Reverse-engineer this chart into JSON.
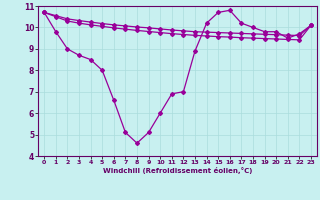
{
  "xlabel": "Windchill (Refroidissement éolien,°C)",
  "background_color": "#c8f0f0",
  "line_color": "#990099",
  "xlim": [
    -0.5,
    23.5
  ],
  "ylim": [
    4,
    11
  ],
  "xticks": [
    0,
    1,
    2,
    3,
    4,
    5,
    6,
    7,
    8,
    9,
    10,
    11,
    12,
    13,
    14,
    15,
    16,
    17,
    18,
    19,
    20,
    21,
    22,
    23
  ],
  "yticks": [
    4,
    5,
    6,
    7,
    8,
    9,
    10,
    11
  ],
  "series_dip": [
    10.7,
    9.8,
    9.0,
    8.7,
    8.5,
    8.0,
    6.6,
    5.1,
    4.6,
    5.1,
    6.0,
    6.9,
    7.0,
    8.9,
    10.2,
    10.7,
    10.8,
    10.2,
    10.0,
    9.8,
    9.8,
    9.5,
    9.7,
    10.1
  ],
  "series_flat1": [
    10.7,
    10.55,
    10.4,
    10.32,
    10.25,
    10.18,
    10.12,
    10.07,
    10.02,
    9.98,
    9.93,
    9.88,
    9.84,
    9.8,
    9.78,
    9.76,
    9.74,
    9.72,
    9.7,
    9.68,
    9.66,
    9.64,
    9.62,
    10.1
  ],
  "series_flat2": [
    10.7,
    10.5,
    10.3,
    10.2,
    10.12,
    10.05,
    9.98,
    9.92,
    9.86,
    9.81,
    9.76,
    9.71,
    9.67,
    9.63,
    9.6,
    9.57,
    9.55,
    9.52,
    9.5,
    9.48,
    9.46,
    9.44,
    9.42,
    10.1
  ],
  "grid_color": "#aadddd",
  "tick_color": "#660066",
  "spine_color": "#660066"
}
